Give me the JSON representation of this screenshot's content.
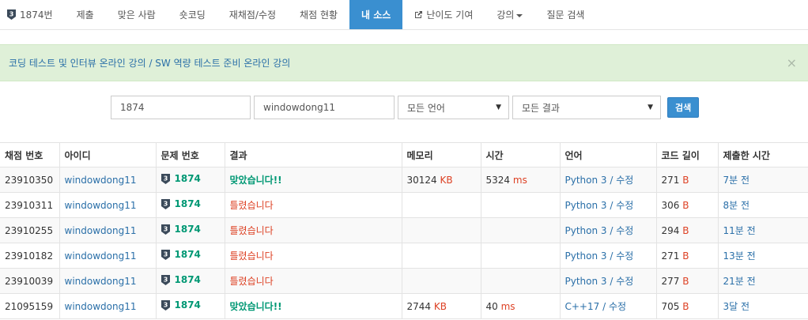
{
  "nav": {
    "items": [
      {
        "label": "1874번",
        "icon": "tier-badge",
        "tier": "3"
      },
      {
        "label": "제출"
      },
      {
        "label": "맞은 사람"
      },
      {
        "label": "숏코딩"
      },
      {
        "label": "재채점/수정"
      },
      {
        "label": "채점 현황"
      },
      {
        "label": "내 소스",
        "active": true
      },
      {
        "label": "난이도 기여",
        "icon": "external-link-icon"
      },
      {
        "label": "강의",
        "dropdown": true
      },
      {
        "label": "질문 검색"
      }
    ]
  },
  "alert": {
    "text": "코딩 테스트 및 인터뷰 온라인 강의 / SW 역량 테스트 준비 온라인 강의",
    "close": "×"
  },
  "search": {
    "problem_id": "1874",
    "user_id": "windowdong11",
    "language": "모든 언어",
    "result": "모든 결과",
    "button": "검색"
  },
  "table": {
    "headers": [
      "채점 번호",
      "아이디",
      "문제 번호",
      "결과",
      "메모리",
      "시간",
      "언어",
      "코드 길이",
      "제출한 시간"
    ],
    "rows": [
      {
        "id": "23910350",
        "user": "windowdong11",
        "tier": "3",
        "problem": "1874",
        "result": "맞았습니다!!",
        "ok": true,
        "memory": "30124",
        "mem_unit": "KB",
        "time": "5324",
        "time_unit": "ms",
        "lang": "Python 3",
        "edit": "수정",
        "length": "271",
        "len_unit": "B",
        "submitted": "7분 전"
      },
      {
        "id": "23910311",
        "user": "windowdong11",
        "tier": "3",
        "problem": "1874",
        "result": "틀렸습니다",
        "ok": false,
        "memory": "",
        "mem_unit": "",
        "time": "",
        "time_unit": "",
        "lang": "Python 3",
        "edit": "수정",
        "length": "306",
        "len_unit": "B",
        "submitted": "8분 전"
      },
      {
        "id": "23910255",
        "user": "windowdong11",
        "tier": "3",
        "problem": "1874",
        "result": "틀렸습니다",
        "ok": false,
        "memory": "",
        "mem_unit": "",
        "time": "",
        "time_unit": "",
        "lang": "Python 3",
        "edit": "수정",
        "length": "294",
        "len_unit": "B",
        "submitted": "11분 전"
      },
      {
        "id": "23910182",
        "user": "windowdong11",
        "tier": "3",
        "problem": "1874",
        "result": "틀렸습니다",
        "ok": false,
        "memory": "",
        "mem_unit": "",
        "time": "",
        "time_unit": "",
        "lang": "Python 3",
        "edit": "수정",
        "length": "271",
        "len_unit": "B",
        "submitted": "13분 전"
      },
      {
        "id": "23910039",
        "user": "windowdong11",
        "tier": "3",
        "problem": "1874",
        "result": "틀렸습니다",
        "ok": false,
        "memory": "",
        "mem_unit": "",
        "time": "",
        "time_unit": "",
        "lang": "Python 3",
        "edit": "수정",
        "length": "277",
        "len_unit": "B",
        "submitted": "21분 전"
      },
      {
        "id": "21095159",
        "user": "windowdong11",
        "tier": "3",
        "problem": "1874",
        "result": "맞았습니다!!",
        "ok": true,
        "memory": "2744",
        "mem_unit": "KB",
        "time": "40",
        "time_unit": "ms",
        "lang": "C++17",
        "edit": "수정",
        "length": "705",
        "len_unit": "B",
        "submitted": "3달 전"
      }
    ]
  },
  "colors": {
    "accent": "#3a8fd0",
    "accepted": "#009874",
    "wrong": "#dd4124",
    "link": "#2a6fa8",
    "tier_badge": "#3b4a5a"
  }
}
